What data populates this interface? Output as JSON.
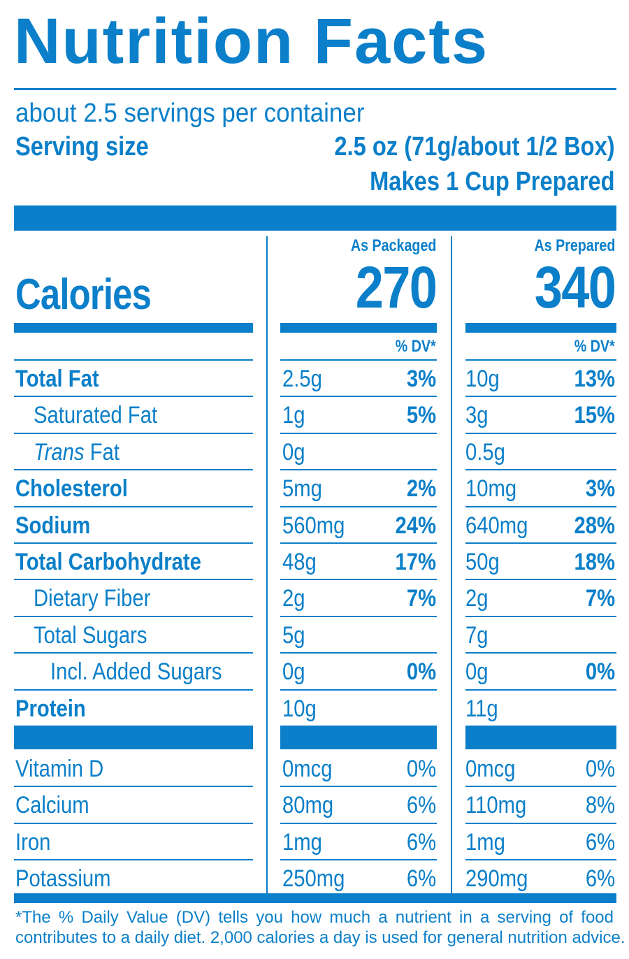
{
  "title": "Nutrition Facts",
  "servings_per_container": "about 2.5 servings per container",
  "serving_size_label": "Serving size",
  "serving_size_value": "2.5 oz (71g/about 1/2 Box)",
  "makes": "Makes 1 Cup Prepared",
  "columns": [
    {
      "heading": "As Packaged",
      "calories": "270"
    },
    {
      "heading": "As Prepared",
      "calories": "340"
    }
  ],
  "calories_label": "Calories",
  "dv_heading": "% DV*",
  "nutrients": [
    {
      "label": "Total Fat",
      "emphasis": "bold",
      "packaged": "2.5g",
      "packaged_dv": "3%",
      "prepared": "10g",
      "prepared_dv": "13%"
    },
    {
      "label": "Saturated Fat",
      "emphasis": "indent1",
      "packaged": "1g",
      "packaged_dv": "5%",
      "prepared": "3g",
      "prepared_dv": "15%"
    },
    {
      "label_italic": "Trans",
      "label": " Fat",
      "emphasis": "indent1",
      "packaged": "0g",
      "packaged_dv": "",
      "prepared": "0.5g",
      "prepared_dv": ""
    },
    {
      "label": "Cholesterol",
      "emphasis": "bold",
      "packaged": "5mg",
      "packaged_dv": "2%",
      "prepared": "10mg",
      "prepared_dv": "3%"
    },
    {
      "label": "Sodium",
      "emphasis": "bold",
      "packaged": "560mg",
      "packaged_dv": "24%",
      "prepared": "640mg",
      "prepared_dv": "28%"
    },
    {
      "label": "Total Carbohydrate",
      "emphasis": "bold",
      "packaged": "48g",
      "packaged_dv": "17%",
      "prepared": "50g",
      "prepared_dv": "18%"
    },
    {
      "label": "Dietary Fiber",
      "emphasis": "indent1",
      "packaged": "2g",
      "packaged_dv": "7%",
      "prepared": "2g",
      "prepared_dv": "7%"
    },
    {
      "label": "Total Sugars",
      "emphasis": "indent1",
      "packaged": "5g",
      "packaged_dv": "",
      "prepared": "7g",
      "prepared_dv": ""
    },
    {
      "label": "Incl. Added Sugars",
      "emphasis": "indent2",
      "packaged": "0g",
      "packaged_dv": "0%",
      "prepared": "0g",
      "prepared_dv": "0%"
    },
    {
      "label": "Protein",
      "emphasis": "bold",
      "packaged": "10g",
      "packaged_dv": "",
      "prepared": "11g",
      "prepared_dv": ""
    }
  ],
  "vitamins": [
    {
      "label": "Vitamin D",
      "packaged": "0mcg",
      "packaged_dv": "0%",
      "prepared": "0mcg",
      "prepared_dv": "0%"
    },
    {
      "label": "Calcium",
      "packaged": "80mg",
      "packaged_dv": "6%",
      "prepared": "110mg",
      "prepared_dv": "8%"
    },
    {
      "label": "Iron",
      "packaged": "1mg",
      "packaged_dv": "6%",
      "prepared": "1mg",
      "prepared_dv": "6%"
    },
    {
      "label": "Potassium",
      "packaged": "250mg",
      "packaged_dv": "6%",
      "prepared": "290mg",
      "prepared_dv": "6%"
    }
  ],
  "footnote_line1": "*The % Daily Value (DV) tells you how much a nutrient in a serving of food",
  "footnote_line2": "contributes to a daily diet. 2,000 calories a day is used for general nutrition advice.",
  "colors": {
    "ink": "#0b7fc9",
    "paper": "#ffffff"
  }
}
